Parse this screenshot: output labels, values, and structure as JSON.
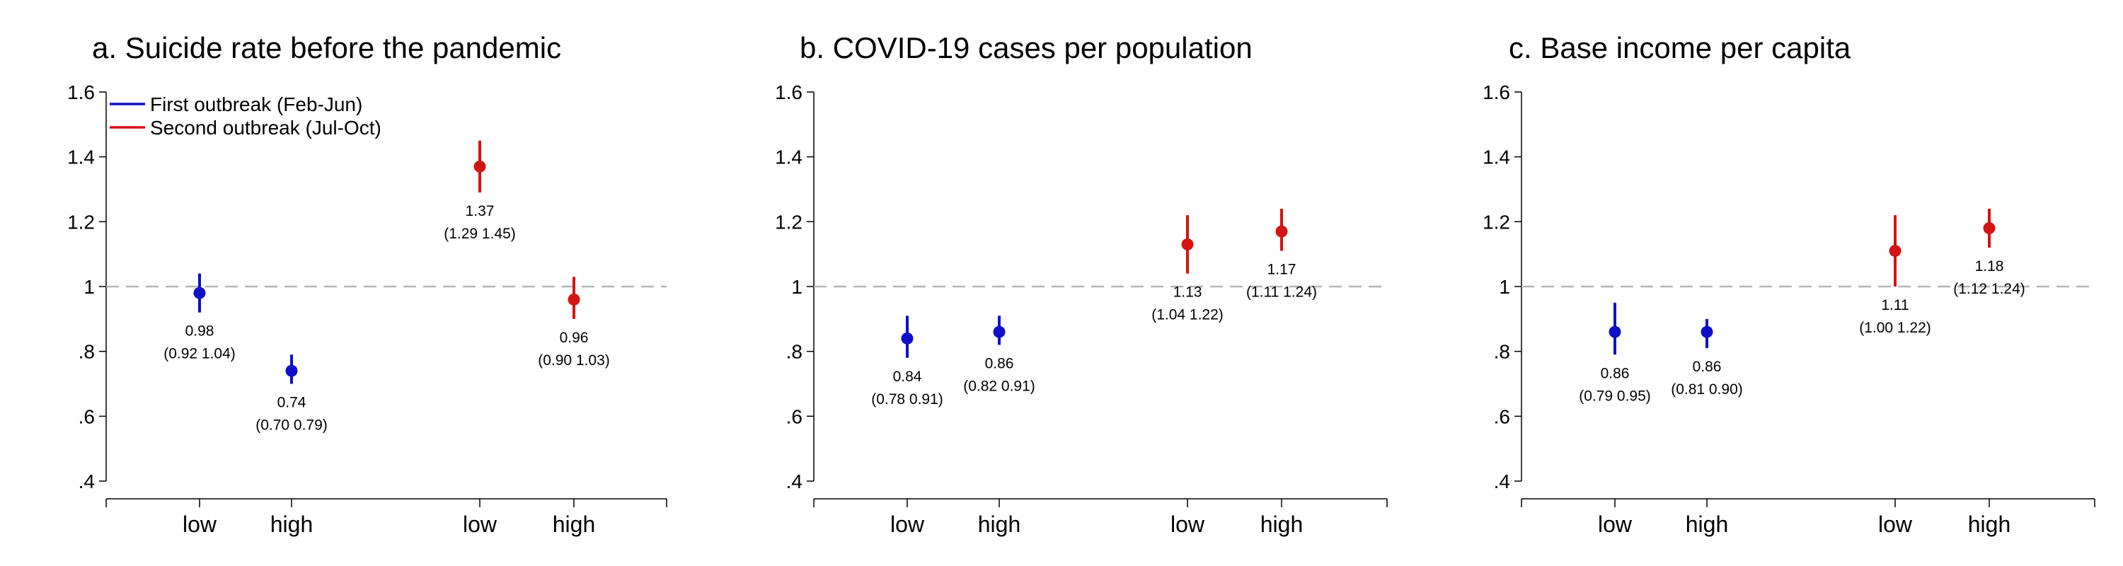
{
  "legend": [
    {
      "label": "First outbreak (Feb-Jun)",
      "color": "#1010c8"
    },
    {
      "label": "Second outbreak (Jul-Oct)",
      "color": "#d41414"
    }
  ],
  "chart_data": [
    {
      "type": "scatter",
      "title": "a. Suicide rate before the pandemic",
      "ylim": [
        0.4,
        1.6
      ],
      "yticks": [
        ".4",
        ".6",
        ".8",
        "1",
        "1.2",
        "1.4",
        "1.6"
      ],
      "reference_line": 1,
      "categories": [
        "low",
        "high",
        "low",
        "high"
      ],
      "series": [
        {
          "name": "First outbreak (Feb-Jun)",
          "color": "#1010c8",
          "points": [
            {
              "category": "low",
              "value": 0.98,
              "ci": [
                0.92,
                1.04
              ],
              "label": "0.98",
              "ci_label": "(0.92 1.04)"
            },
            {
              "category": "high",
              "value": 0.74,
              "ci": [
                0.7,
                0.79
              ],
              "label": "0.74",
              "ci_label": "(0.70 0.79)"
            }
          ]
        },
        {
          "name": "Second outbreak (Jul-Oct)",
          "color": "#d41414",
          "points": [
            {
              "category": "low",
              "value": 1.37,
              "ci": [
                1.29,
                1.45
              ],
              "label": "1.37",
              "ci_label": "(1.29 1.45)"
            },
            {
              "category": "high",
              "value": 0.96,
              "ci": [
                0.9,
                1.03
              ],
              "label": "0.96",
              "ci_label": "(0.90 1.03)"
            }
          ]
        }
      ]
    },
    {
      "type": "scatter",
      "title": "b. COVID-19 cases per population",
      "ylim": [
        0.4,
        1.6
      ],
      "yticks": [
        ".4",
        ".6",
        ".8",
        "1",
        "1.2",
        "1.4",
        "1.6"
      ],
      "reference_line": 1,
      "categories": [
        "low",
        "high",
        "low",
        "high"
      ],
      "series": [
        {
          "name": "First outbreak (Feb-Jun)",
          "color": "#1010c8",
          "points": [
            {
              "category": "low",
              "value": 0.84,
              "ci": [
                0.78,
                0.91
              ],
              "label": "0.84",
              "ci_label": "(0.78 0.91)"
            },
            {
              "category": "high",
              "value": 0.86,
              "ci": [
                0.82,
                0.91
              ],
              "label": "0.86",
              "ci_label": "(0.82 0.91)"
            }
          ]
        },
        {
          "name": "Second outbreak (Jul-Oct)",
          "color": "#d41414",
          "points": [
            {
              "category": "low",
              "value": 1.13,
              "ci": [
                1.04,
                1.22
              ],
              "label": "1.13",
              "ci_label": "(1.04 1.22)"
            },
            {
              "category": "high",
              "value": 1.17,
              "ci": [
                1.11,
                1.24
              ],
              "label": "1.17",
              "ci_label": "(1.11 1.24)"
            }
          ]
        }
      ]
    },
    {
      "type": "scatter",
      "title": "c. Base income per capita",
      "ylim": [
        0.4,
        1.6
      ],
      "yticks": [
        ".4",
        ".6",
        ".8",
        "1",
        "1.2",
        "1.4",
        "1.6"
      ],
      "reference_line": 1,
      "categories": [
        "low",
        "high",
        "low",
        "high"
      ],
      "series": [
        {
          "name": "First outbreak (Feb-Jun)",
          "color": "#1010c8",
          "points": [
            {
              "category": "low",
              "value": 0.86,
              "ci": [
                0.79,
                0.95
              ],
              "label": "0.86",
              "ci_label": "(0.79 0.95)"
            },
            {
              "category": "high",
              "value": 0.86,
              "ci": [
                0.81,
                0.9
              ],
              "label": "0.86",
              "ci_label": "(0.81 0.90)"
            }
          ]
        },
        {
          "name": "Second outbreak (Jul-Oct)",
          "color": "#d41414",
          "points": [
            {
              "category": "low",
              "value": 1.11,
              "ci": [
                1.0,
                1.22
              ],
              "label": "1.11",
              "ci_label": "(1.00 1.22)"
            },
            {
              "category": "high",
              "value": 1.18,
              "ci": [
                1.12,
                1.24
              ],
              "label": "1.18",
              "ci_label": "(1.12 1.24)"
            }
          ]
        }
      ]
    }
  ]
}
